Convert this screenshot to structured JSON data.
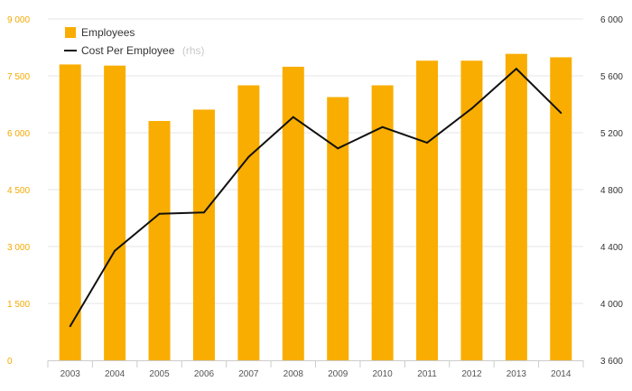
{
  "chart_data": {
    "type": "bar+line",
    "categories": [
      "2003",
      "2004",
      "2005",
      "2006",
      "2007",
      "2008",
      "2009",
      "2010",
      "2011",
      "2012",
      "2013",
      "2014"
    ],
    "series": [
      {
        "name": "Employees",
        "type": "bar",
        "axis": "left",
        "values": [
          7800,
          7770,
          6310,
          6610,
          7250,
          7740,
          6940,
          7250,
          7900,
          7900,
          8080,
          7990
        ]
      },
      {
        "name": "Cost Per Employee",
        "type": "line",
        "axis": "right",
        "values": [
          3840,
          4370,
          4630,
          4640,
          5030,
          5310,
          5090,
          5240,
          5130,
          5370,
          5650,
          5340
        ]
      }
    ],
    "y_left": {
      "range": [
        0,
        9000
      ],
      "ticks": [
        "0",
        "1 500",
        "3 000",
        "4 500",
        "6 000",
        "7 500",
        "9 000"
      ]
    },
    "y_right": {
      "range": [
        3600,
        6000
      ],
      "ticks": [
        "3 600",
        "4 000",
        "4 400",
        "4 800",
        "5 200",
        "5 600",
        "6 000"
      ]
    },
    "legend": {
      "position": "top-left",
      "items": [
        {
          "label": "Employees",
          "suffix": ""
        },
        {
          "label": "Cost Per Employee",
          "suffix": "(rhs)"
        }
      ]
    },
    "grid": true,
    "colors": {
      "bar": "#f9ad00",
      "line": "#111111",
      "left_axis": "#f5a800",
      "right_axis": "#333333",
      "grid": "#e6e6e6"
    }
  }
}
